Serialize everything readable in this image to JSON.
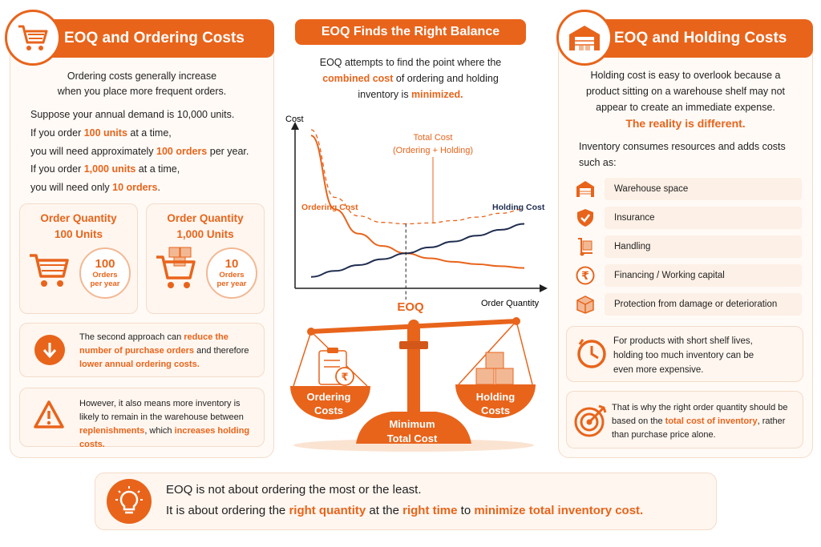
{
  "left": {
    "title": "EOQ and Ordering Costs",
    "intro_1": "Ordering costs generally increase",
    "intro_2": "when you place more frequent orders.",
    "demand": "Suppose your annual demand is 10,000 units.",
    "s1_a": "If you order ",
    "s1_b": "100 units",
    "s1_c": " at a time,",
    "s2_a": "you will need approximately ",
    "s2_b": "100 orders",
    "s2_c": " per year.",
    "s3_a": "If you order ",
    "s3_b": "1,000 units",
    "s3_c": " at a time,",
    "s4_a": "you will need only ",
    "s4_b": "10 orders",
    "s4_c": ".",
    "card1": {
      "title_1": "Order Quantity",
      "title_2": "100 Units",
      "num": "100",
      "lbl_1": "Orders",
      "lbl_2": "per year"
    },
    "card2": {
      "title_1": "Order Quantity",
      "title_2": "1,000 Units",
      "num": "10",
      "lbl_1": "Orders",
      "lbl_2": "per year"
    },
    "note1": {
      "l1_a": "The second approach can ",
      "l1_b": "reduce the",
      "l2_a": "number of purchase orders",
      "l2_b": " and therefore",
      "l3": "lower annual ordering costs."
    },
    "note2": {
      "l1": "However, it also means more inventory is",
      "l2": "likely to remain in the warehouse between",
      "l3_a": "replenishments",
      "l3_b": ", which ",
      "l3_c": "increases holding costs."
    }
  },
  "center": {
    "title": "EOQ Finds the Right Balance",
    "intro_1": "EOQ attempts to find the point where the",
    "intro_2a": "combined cost",
    "intro_2b": " of ordering and holding",
    "intro_3a": "inventory is ",
    "intro_3b": "minimized.",
    "scale": {
      "left_1": "Ordering",
      "left_2": "Costs",
      "right_1": "Holding",
      "right_2": "Costs",
      "base_1": "Minimum",
      "base_2": "Total Cost"
    }
  },
  "chart_data": {
    "type": "line",
    "xlabel": "Order Quantity",
    "ylabel": "Cost",
    "grid": false,
    "x": [
      0.2,
      0.4,
      0.6,
      0.8,
      1.0,
      1.2,
      1.4,
      1.6,
      1.8,
      2.0
    ],
    "series": [
      {
        "name": "Ordering Cost",
        "values": [
          5.0,
          2.5,
          1.67,
          1.25,
          1.0,
          0.83,
          0.71,
          0.63,
          0.56,
          0.5
        ]
      },
      {
        "name": "Holding Cost",
        "values": [
          0.2,
          0.4,
          0.6,
          0.8,
          1.0,
          1.2,
          1.4,
          1.6,
          1.8,
          2.0
        ]
      },
      {
        "name": "Total Cost (Ordering + Holding)",
        "values": [
          5.2,
          2.9,
          2.27,
          2.05,
          2.0,
          2.03,
          2.11,
          2.23,
          2.36,
          2.5
        ]
      }
    ],
    "annotations": [
      "Total Cost",
      "(Ordering + Holding)",
      "EOQ"
    ],
    "colors": {
      "ordering": "#e8641b",
      "holding": "#1f2d4f",
      "total": "#e8641b"
    }
  },
  "right": {
    "title": "EOQ and Holding Costs",
    "intro_1": "Holding cost is easy to overlook because a",
    "intro_2": "product sitting on a warehouse shelf may not",
    "intro_3": "appear to create an immediate expense.",
    "reality": "The reality is different.",
    "consumes_1": "Inventory consumes resources and adds costs",
    "consumes_2": "such as:",
    "items": [
      {
        "label": "Warehouse space",
        "icon": "warehouse-icon"
      },
      {
        "label": "Insurance",
        "icon": "shield-check-icon"
      },
      {
        "label": "Handling",
        "icon": "hand-truck-icon"
      },
      {
        "label": "Financing / Working capital",
        "icon": "rupee-icon"
      },
      {
        "label": "Protection from damage or deterioration",
        "icon": "box-icon"
      }
    ],
    "note1": {
      "l1": "For products with short shelf lives,",
      "l2": "holding too much inventory can be",
      "l3": "even more expensive."
    },
    "note2": {
      "l1": "That is why the right order quantity should be",
      "l2_a": "based on the ",
      "l2_b": "total cost of inventory",
      "l2_c": ", rather",
      "l3": "than purchase price alone."
    }
  },
  "bottom": {
    "line1": "EOQ is not about ordering the most or the least.",
    "l2_a": "It is about ordering the ",
    "l2_b": "right quantity",
    "l2_c": " at the ",
    "l2_d": "right time",
    "l2_e": " to ",
    "l2_f": "minimize total inventory cost."
  },
  "colors": {
    "accent": "#e8641b",
    "navy": "#1f2d4f",
    "panel": "#fff6ef",
    "border": "#f3dcc9"
  }
}
